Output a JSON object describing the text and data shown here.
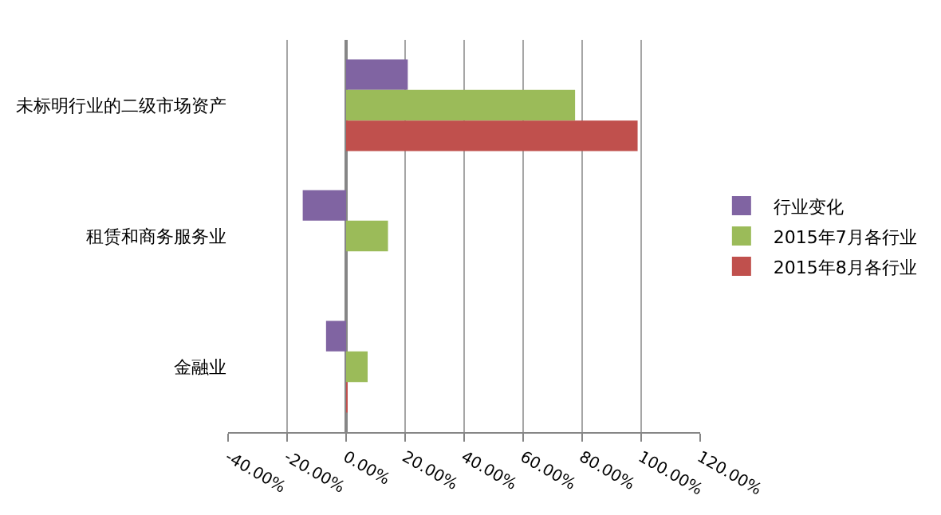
{
  "chart_data": {
    "type": "bar",
    "orientation": "horizontal",
    "categories": [
      "未标明行业的二级市场资产",
      "租赁和商务服务业",
      "金融业"
    ],
    "series": [
      {
        "name": "行业变化",
        "color": "#8064a2",
        "values": [
          0.209,
          -0.147,
          -0.068
        ]
      },
      {
        "name": "2015年7月各行业",
        "color": "#9bbb59",
        "values": [
          0.776,
          0.142,
          0.073
        ]
      },
      {
        "name": "2015年8月各行业",
        "color": "#c0504d",
        "values": [
          0.988,
          null,
          0.004
        ]
      }
    ],
    "xlim": [
      -0.4,
      1.2
    ],
    "xticks": [
      {
        "value": -0.4,
        "label": "-40.00%"
      },
      {
        "value": -0.2,
        "label": "-20.00%"
      },
      {
        "value": 0,
        "label": "0.00%"
      },
      {
        "value": 0.2,
        "label": "20.00%"
      },
      {
        "value": 0.4,
        "label": "40.00%"
      },
      {
        "value": 0.6,
        "label": "60.00%"
      },
      {
        "value": 0.8,
        "label": "80.00%"
      },
      {
        "value": 1.0,
        "label": "100.00%"
      },
      {
        "value": 1.2,
        "label": "120.00%"
      }
    ],
    "grid": "x",
    "legend": "right"
  }
}
